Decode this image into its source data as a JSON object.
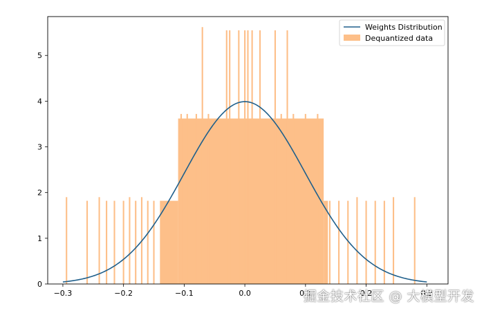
{
  "chart_data": {
    "type": "bar",
    "xlim": [
      -0.325,
      0.335
    ],
    "ylim": [
      0,
      5.85
    ],
    "xticks": [
      -0.3,
      -0.2,
      -0.1,
      0.0,
      0.1,
      0.2,
      0.3
    ],
    "xtick_labels": [
      "−0.3",
      "−0.2",
      "−0.1",
      "0.0",
      "0.1",
      "0.2",
      "0.3"
    ],
    "yticks": [
      0,
      1,
      2,
      3,
      4,
      5
    ],
    "ytick_labels": [
      "0",
      "1",
      "2",
      "3",
      "4",
      "5"
    ],
    "grid": false,
    "legend_position": "top-right",
    "series": [
      {
        "name": "Weights Distribution",
        "kind": "line",
        "color": "#1f5f8b",
        "function": "normal_pdf",
        "mean": 0.0,
        "std": 0.1,
        "x_range": [
          -0.3,
          0.3
        ]
      },
      {
        "name": "Dequantized data",
        "kind": "histogram",
        "color": "#fdbf89",
        "bar_width": 0.0024,
        "segments": [
          {
            "x_from": -0.3,
            "x_to": -0.14,
            "height": 0.0
          },
          {
            "x_from": -0.14,
            "x_to": -0.11,
            "height": 1.82
          },
          {
            "x_from": -0.11,
            "x_to": 0.13,
            "height": 3.62
          },
          {
            "x_from": 0.13,
            "x_to": 0.137,
            "height": 1.82
          }
        ],
        "spikes": [
          {
            "x": -0.294,
            "height": 1.9
          },
          {
            "x": -0.26,
            "height": 1.82
          },
          {
            "x": -0.24,
            "height": 1.9
          },
          {
            "x": -0.228,
            "height": 1.82
          },
          {
            "x": -0.215,
            "height": 1.82
          },
          {
            "x": -0.2,
            "height": 1.82
          },
          {
            "x": -0.19,
            "height": 1.9
          },
          {
            "x": -0.18,
            "height": 1.82
          },
          {
            "x": -0.17,
            "height": 1.9
          },
          {
            "x": -0.16,
            "height": 1.82
          },
          {
            "x": -0.15,
            "height": 1.82
          },
          {
            "x": -0.105,
            "height": 3.72
          },
          {
            "x": -0.095,
            "height": 3.72
          },
          {
            "x": -0.08,
            "height": 3.72
          },
          {
            "x": -0.07,
            "height": 5.62
          },
          {
            "x": -0.06,
            "height": 3.72
          },
          {
            "x": -0.03,
            "height": 5.55
          },
          {
            "x": -0.025,
            "height": 5.55
          },
          {
            "x": -0.01,
            "height": 5.55
          },
          {
            "x": 0.0,
            "height": 5.55
          },
          {
            "x": 0.005,
            "height": 5.55
          },
          {
            "x": 0.012,
            "height": 5.55
          },
          {
            "x": 0.025,
            "height": 5.55
          },
          {
            "x": 0.05,
            "height": 5.55
          },
          {
            "x": 0.06,
            "height": 3.72
          },
          {
            "x": 0.07,
            "height": 5.55
          },
          {
            "x": 0.08,
            "height": 3.72
          },
          {
            "x": 0.1,
            "height": 3.72
          },
          {
            "x": 0.12,
            "height": 3.72
          },
          {
            "x": 0.14,
            "height": 1.82
          },
          {
            "x": 0.155,
            "height": 1.82
          },
          {
            "x": 0.17,
            "height": 1.82
          },
          {
            "x": 0.185,
            "height": 1.9
          },
          {
            "x": 0.2,
            "height": 1.82
          },
          {
            "x": 0.215,
            "height": 1.82
          },
          {
            "x": 0.23,
            "height": 1.82
          },
          {
            "x": 0.245,
            "height": 1.9
          },
          {
            "x": 0.28,
            "height": 1.9
          }
        ]
      }
    ]
  },
  "watermark": "掘金技术社区 @ 大模型开发"
}
